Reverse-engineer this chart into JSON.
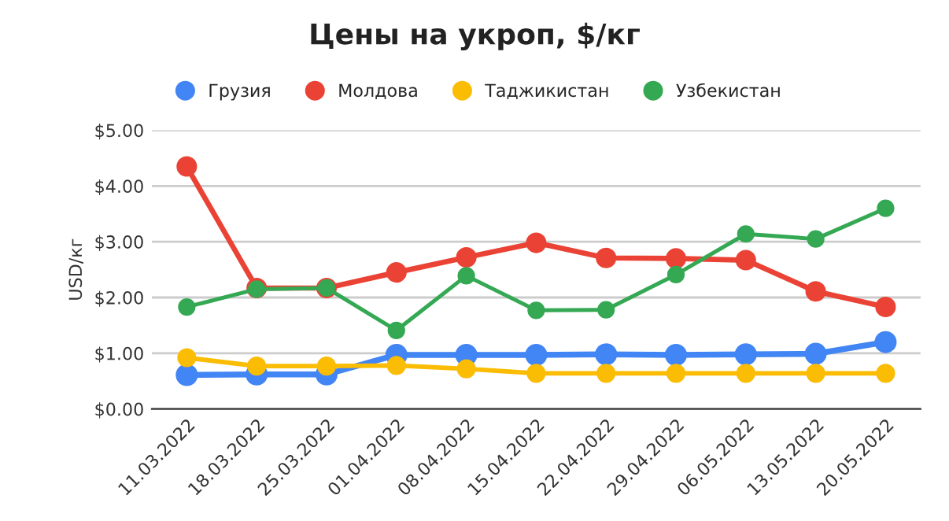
{
  "chart_data": {
    "type": "line",
    "title": "Цены на укроп, $/кг",
    "ylabel": "USD/кг",
    "categories": [
      "11.03.2022",
      "18.03.2022",
      "25.03.2022",
      "01.04.2022",
      "08.04.2022",
      "15.04.2022",
      "22.04.2022",
      "29.04.2022",
      "06.05.2022",
      "13.05.2022",
      "20.05.2022"
    ],
    "series": [
      {
        "name": "Грузия",
        "color": "#4285f4",
        "values": [
          0.61,
          0.62,
          0.62,
          0.97,
          0.97,
          0.97,
          0.98,
          0.97,
          0.98,
          0.99,
          1.2
        ]
      },
      {
        "name": "Молдова",
        "color": "#ea4335",
        "values": [
          4.35,
          2.17,
          2.17,
          2.45,
          2.72,
          2.98,
          2.71,
          2.7,
          2.67,
          2.11,
          1.83
        ]
      },
      {
        "name": "Таджикистан",
        "color": "#fbbc04",
        "values": [
          0.92,
          0.77,
          0.77,
          0.78,
          0.72,
          0.64,
          0.64,
          0.64,
          0.64,
          0.64,
          0.64
        ]
      },
      {
        "name": "Узбекистан",
        "color": "#34a853",
        "values": [
          1.83,
          2.15,
          2.17,
          1.41,
          2.39,
          1.77,
          1.78,
          2.41,
          3.14,
          3.05,
          3.6
        ]
      }
    ],
    "ylim": [
      0,
      5
    ],
    "yticks": [
      {
        "value": 0,
        "label": "$0.00"
      },
      {
        "value": 1,
        "label": "$1.00"
      },
      {
        "value": 2,
        "label": "$2.00"
      },
      {
        "value": 3,
        "label": "$3.00"
      },
      {
        "value": 4,
        "label": "$4.00"
      },
      {
        "value": 5,
        "label": "$5.00"
      }
    ],
    "grid": "y",
    "legend": "top",
    "marker": "circle",
    "line_style": "solid"
  }
}
